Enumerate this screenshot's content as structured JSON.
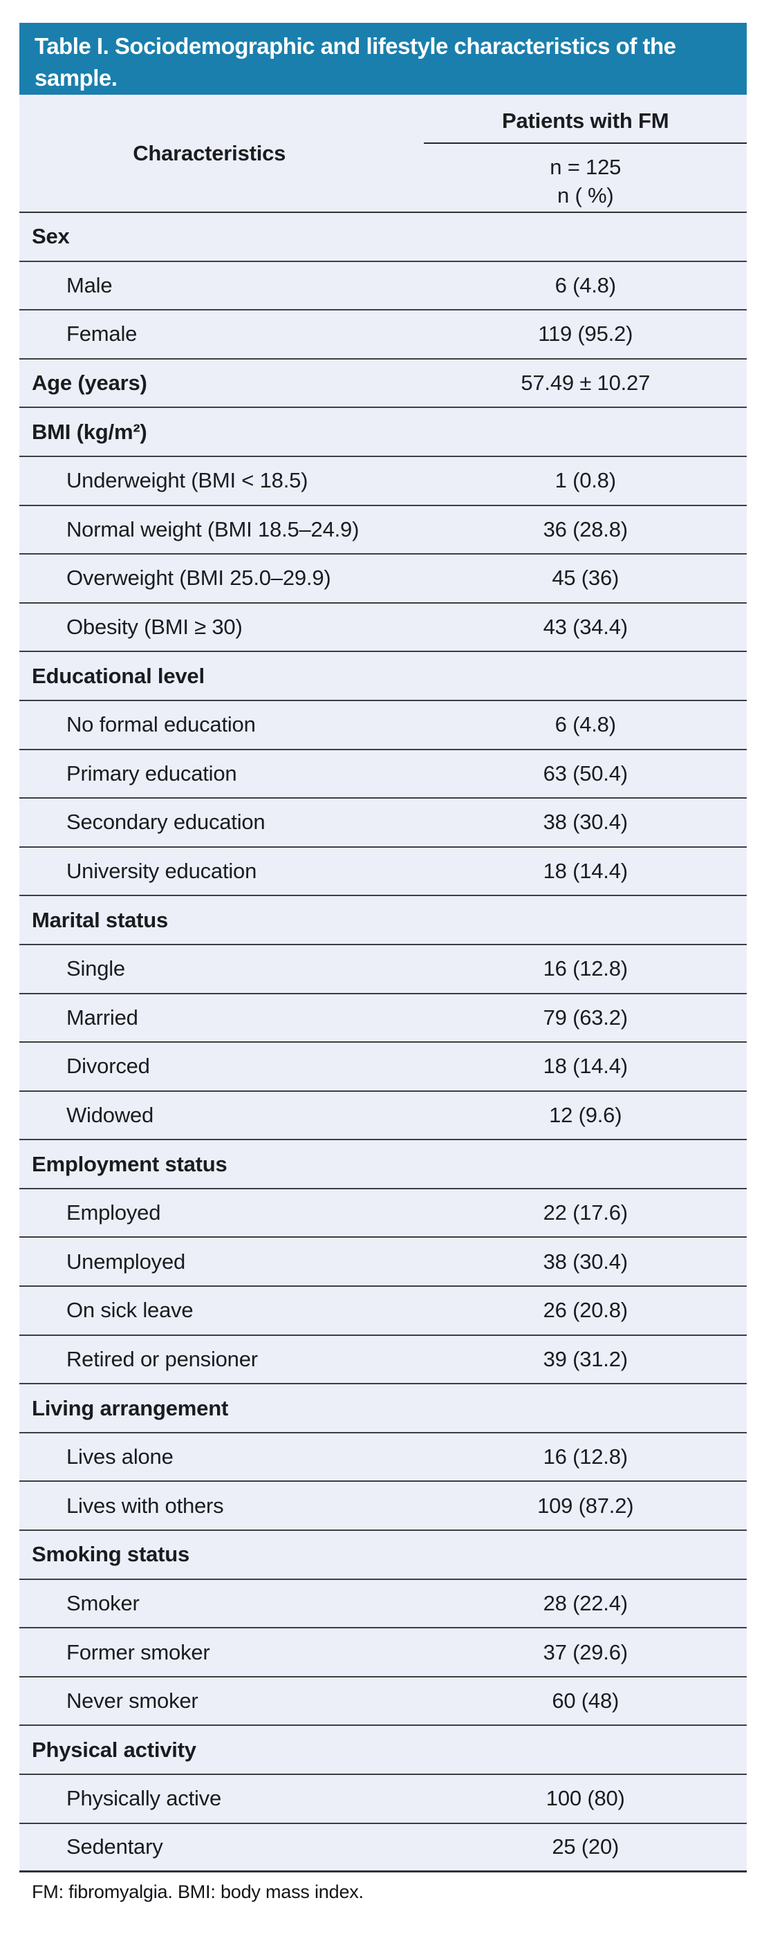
{
  "table": {
    "title": "Table I. Sociodemographic and lifestyle characteristics of the sample.",
    "col_characteristics": "Characteristics",
    "col_group": "Patients with FM",
    "col_sub_n": "n = 125",
    "col_sub_pct": "n ( %)",
    "footnote": "FM: fibromyalgia. BMI: body mass index.",
    "colors": {
      "header_bg": "#1a7fad",
      "body_bg": "#eceff7",
      "rule": "#23262b",
      "line": "#3a3e46",
      "line_heavy": "#2e3239",
      "title_text": "#ffffff"
    },
    "sections": [
      {
        "header": "Sex",
        "value": "",
        "items": [
          {
            "label": "Male",
            "value": "6 (4.8)"
          },
          {
            "label": "Female",
            "value": "119 (95.2)"
          }
        ]
      },
      {
        "header": "Age (years)",
        "value": "57.49 ± 10.27",
        "items": []
      },
      {
        "header": "BMI (kg/m²)",
        "value": "",
        "items": [
          {
            "label": "Underweight (BMI < 18.5)",
            "value": "1 (0.8)"
          },
          {
            "label": "Normal weight (BMI 18.5–24.9)",
            "value": "36 (28.8)"
          },
          {
            "label": "Overweight (BMI 25.0–29.9)",
            "value": "45 (36)"
          },
          {
            "label": "Obesity (BMI ≥ 30)",
            "value": "43 (34.4)"
          }
        ]
      },
      {
        "header": "Educational level",
        "value": "",
        "items": [
          {
            "label": "No formal education",
            "value": "6 (4.8)"
          },
          {
            "label": "Primary education",
            "value": "63 (50.4)"
          },
          {
            "label": "Secondary education",
            "value": "38 (30.4)"
          },
          {
            "label": "University education",
            "value": "18 (14.4)"
          }
        ]
      },
      {
        "header": "Marital status",
        "value": "",
        "items": [
          {
            "label": "Single",
            "value": "16 (12.8)"
          },
          {
            "label": "Married",
            "value": "79 (63.2)"
          },
          {
            "label": "Divorced",
            "value": "18 (14.4)"
          },
          {
            "label": "Widowed",
            "value": "12 (9.6)"
          }
        ]
      },
      {
        "header": "Employment status",
        "value": "",
        "items": [
          {
            "label": "Employed",
            "value": "22 (17.6)"
          },
          {
            "label": "Unemployed",
            "value": "38 (30.4)"
          },
          {
            "label": "On sick leave",
            "value": "26 (20.8)"
          },
          {
            "label": "Retired or pensioner",
            "value": "39 (31.2)"
          }
        ]
      },
      {
        "header": "Living arrangement",
        "value": "",
        "items": [
          {
            "label": "Lives alone",
            "value": "16 (12.8)"
          },
          {
            "label": "Lives with others",
            "value": "109 (87.2)"
          }
        ]
      },
      {
        "header": "Smoking status",
        "value": "",
        "items": [
          {
            "label": "Smoker",
            "value": "28 (22.4)"
          },
          {
            "label": "Former smoker",
            "value": "37 (29.6)"
          },
          {
            "label": "Never smoker",
            "value": "60 (48)"
          }
        ]
      },
      {
        "header": "Physical activity",
        "value": "",
        "items": [
          {
            "label": "Physically active",
            "value": "100 (80)"
          },
          {
            "label": "Sedentary",
            "value": "25 (20)"
          }
        ]
      }
    ]
  }
}
